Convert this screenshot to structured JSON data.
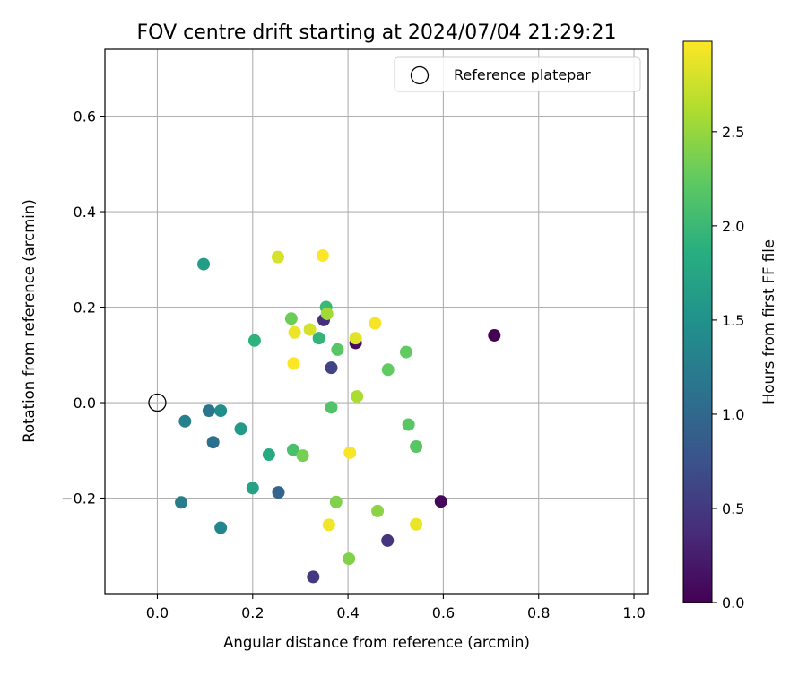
{
  "chart_data": {
    "type": "scatter",
    "title": "FOV centre drift starting at 2024/07/04 21:29:21",
    "xlabel": "Angular distance from reference (arcmin)",
    "ylabel": "Rotation from reference (arcmin)",
    "xlim": [
      -0.11,
      1.03
    ],
    "ylim": [
      -0.4,
      0.74
    ],
    "xticks": [
      0.0,
      0.2,
      0.4,
      0.6,
      0.8,
      1.0
    ],
    "xtick_labels": [
      "0.0",
      "0.2",
      "0.4",
      "0.6",
      "0.8",
      "1.0"
    ],
    "yticks": [
      -0.2,
      0.0,
      0.2,
      0.4,
      0.6
    ],
    "ytick_labels": [
      "−0.2",
      "0.0",
      "0.2",
      "0.4",
      "0.6"
    ],
    "grid": true,
    "legend": {
      "position": "top-right",
      "entries": [
        "Reference platepar"
      ]
    },
    "colorbar": {
      "label": "Hours from first FF file",
      "colormap": "viridis",
      "range": [
        0.0,
        2.98
      ],
      "ticks": [
        0.0,
        0.5,
        1.0,
        1.5,
        2.0,
        2.5
      ],
      "tick_labels": [
        "0.0",
        "0.5",
        "1.0",
        "1.5",
        "2.0",
        "2.5"
      ]
    },
    "reference": {
      "name": "Reference platepar",
      "x": 0.0,
      "y": 0.0
    },
    "points": [
      {
        "x": 0.707,
        "y": 0.141,
        "h": 0.0
      },
      {
        "x": 0.595,
        "y": -0.207,
        "h": 0.05
      },
      {
        "x": 0.416,
        "y": 0.125,
        "h": 0.1
      },
      {
        "x": 0.349,
        "y": 0.173,
        "h": 0.4
      },
      {
        "x": 0.483,
        "y": -0.289,
        "h": 0.45
      },
      {
        "x": 0.327,
        "y": -0.365,
        "h": 0.5
      },
      {
        "x": 0.365,
        "y": 0.073,
        "h": 0.6
      },
      {
        "x": 0.254,
        "y": -0.188,
        "h": 0.95
      },
      {
        "x": 0.117,
        "y": -0.083,
        "h": 1.1
      },
      {
        "x": 0.108,
        "y": -0.017,
        "h": 1.15
      },
      {
        "x": 0.05,
        "y": -0.209,
        "h": 1.25
      },
      {
        "x": 0.058,
        "y": -0.039,
        "h": 1.3
      },
      {
        "x": 0.133,
        "y": -0.262,
        "h": 1.35
      },
      {
        "x": 0.133,
        "y": -0.017,
        "h": 1.45
      },
      {
        "x": 0.175,
        "y": -0.055,
        "h": 1.6
      },
      {
        "x": 0.097,
        "y": 0.29,
        "h": 1.65
      },
      {
        "x": 0.2,
        "y": -0.179,
        "h": 1.7
      },
      {
        "x": 0.234,
        "y": -0.109,
        "h": 1.8
      },
      {
        "x": 0.204,
        "y": 0.13,
        "h": 1.9
      },
      {
        "x": 0.339,
        "y": 0.135,
        "h": 1.95
      },
      {
        "x": 0.354,
        "y": 0.2,
        "h": 2.0
      },
      {
        "x": 0.285,
        "y": -0.099,
        "h": 2.1
      },
      {
        "x": 0.365,
        "y": -0.01,
        "h": 2.15
      },
      {
        "x": 0.378,
        "y": 0.111,
        "h": 2.2
      },
      {
        "x": 0.527,
        "y": -0.046,
        "h": 2.2
      },
      {
        "x": 0.543,
        "y": -0.092,
        "h": 2.2
      },
      {
        "x": 0.484,
        "y": 0.069,
        "h": 2.25
      },
      {
        "x": 0.522,
        "y": 0.106,
        "h": 2.25
      },
      {
        "x": 0.281,
        "y": 0.176,
        "h": 2.3
      },
      {
        "x": 0.305,
        "y": -0.111,
        "h": 2.35
      },
      {
        "x": 0.375,
        "y": -0.208,
        "h": 2.4
      },
      {
        "x": 0.402,
        "y": -0.327,
        "h": 2.4
      },
      {
        "x": 0.462,
        "y": -0.227,
        "h": 2.45
      },
      {
        "x": 0.356,
        "y": 0.186,
        "h": 2.55
      },
      {
        "x": 0.419,
        "y": 0.013,
        "h": 2.6
      },
      {
        "x": 0.253,
        "y": 0.305,
        "h": 2.8
      },
      {
        "x": 0.32,
        "y": 0.153,
        "h": 2.8
      },
      {
        "x": 0.416,
        "y": 0.135,
        "h": 2.85
      },
      {
        "x": 0.288,
        "y": 0.147,
        "h": 2.9
      },
      {
        "x": 0.543,
        "y": -0.255,
        "h": 2.9
      },
      {
        "x": 0.36,
        "y": -0.256,
        "h": 2.92
      },
      {
        "x": 0.457,
        "y": 0.166,
        "h": 2.94
      },
      {
        "x": 0.404,
        "y": -0.105,
        "h": 2.95
      },
      {
        "x": 0.286,
        "y": 0.082,
        "h": 2.97
      },
      {
        "x": 0.347,
        "y": 0.308,
        "h": 2.98
      }
    ]
  }
}
